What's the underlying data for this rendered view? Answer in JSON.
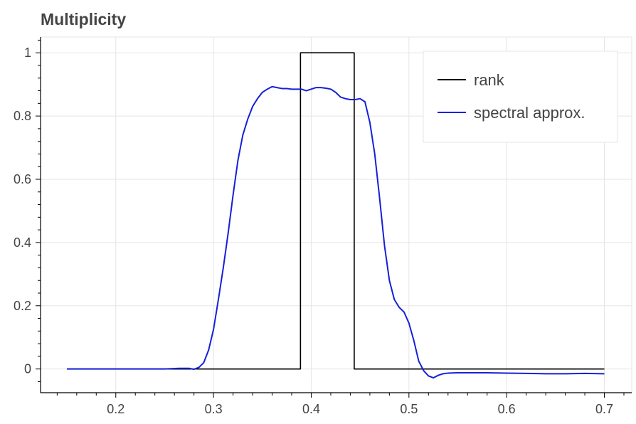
{
  "chart_data": {
    "type": "line",
    "title": "Multiplicity",
    "xlabel": "",
    "ylabel": "",
    "xlim": [
      0.123,
      0.728
    ],
    "ylim": [
      -0.075,
      1.05
    ],
    "xticks": [
      0.2,
      0.3,
      0.4,
      0.5,
      0.6,
      0.7
    ],
    "xtick_labels": [
      "0.2",
      "0.3",
      "0.4",
      "0.5",
      "0.6",
      "0.7"
    ],
    "yticks": [
      0,
      0.2,
      0.4,
      0.6,
      0.8,
      1
    ],
    "ytick_labels": [
      "0",
      "0.2",
      "0.4",
      "0.6",
      "0.8",
      "1"
    ],
    "grid": true,
    "legend_position": "top-right",
    "series": [
      {
        "name": "rank",
        "color": "#000000",
        "x": [
          0.15,
          0.389,
          0.389,
          0.444,
          0.444,
          0.7
        ],
        "y": [
          0,
          0,
          1,
          1,
          0,
          0
        ]
      },
      {
        "name": "spectral approx.",
        "color": "#1520d8",
        "x": [
          0.15,
          0.2,
          0.25,
          0.265,
          0.275,
          0.28,
          0.285,
          0.29,
          0.295,
          0.3,
          0.305,
          0.31,
          0.315,
          0.32,
          0.325,
          0.33,
          0.335,
          0.34,
          0.345,
          0.35,
          0.355,
          0.36,
          0.365,
          0.37,
          0.375,
          0.38,
          0.385,
          0.39,
          0.395,
          0.4,
          0.405,
          0.41,
          0.415,
          0.42,
          0.425,
          0.43,
          0.435,
          0.44,
          0.445,
          0.45,
          0.455,
          0.46,
          0.465,
          0.47,
          0.475,
          0.48,
          0.485,
          0.49,
          0.495,
          0.5,
          0.505,
          0.51,
          0.515,
          0.52,
          0.525,
          0.53,
          0.535,
          0.54,
          0.55,
          0.56,
          0.58,
          0.6,
          0.62,
          0.64,
          0.66,
          0.68,
          0.7
        ],
        "y": [
          0,
          0,
          0,
          0.002,
          0.002,
          -0.001,
          0.005,
          0.02,
          0.06,
          0.125,
          0.22,
          0.32,
          0.43,
          0.55,
          0.66,
          0.74,
          0.79,
          0.83,
          0.855,
          0.875,
          0.885,
          0.893,
          0.89,
          0.887,
          0.887,
          0.885,
          0.885,
          0.885,
          0.88,
          0.885,
          0.89,
          0.89,
          0.888,
          0.885,
          0.875,
          0.86,
          0.855,
          0.852,
          0.852,
          0.855,
          0.845,
          0.78,
          0.68,
          0.54,
          0.39,
          0.28,
          0.22,
          0.195,
          0.18,
          0.145,
          0.09,
          0.025,
          -0.005,
          -0.022,
          -0.028,
          -0.02,
          -0.015,
          -0.013,
          -0.012,
          -0.012,
          -0.012,
          -0.013,
          -0.014,
          -0.015,
          -0.015,
          -0.014,
          -0.015
        ]
      }
    ]
  }
}
